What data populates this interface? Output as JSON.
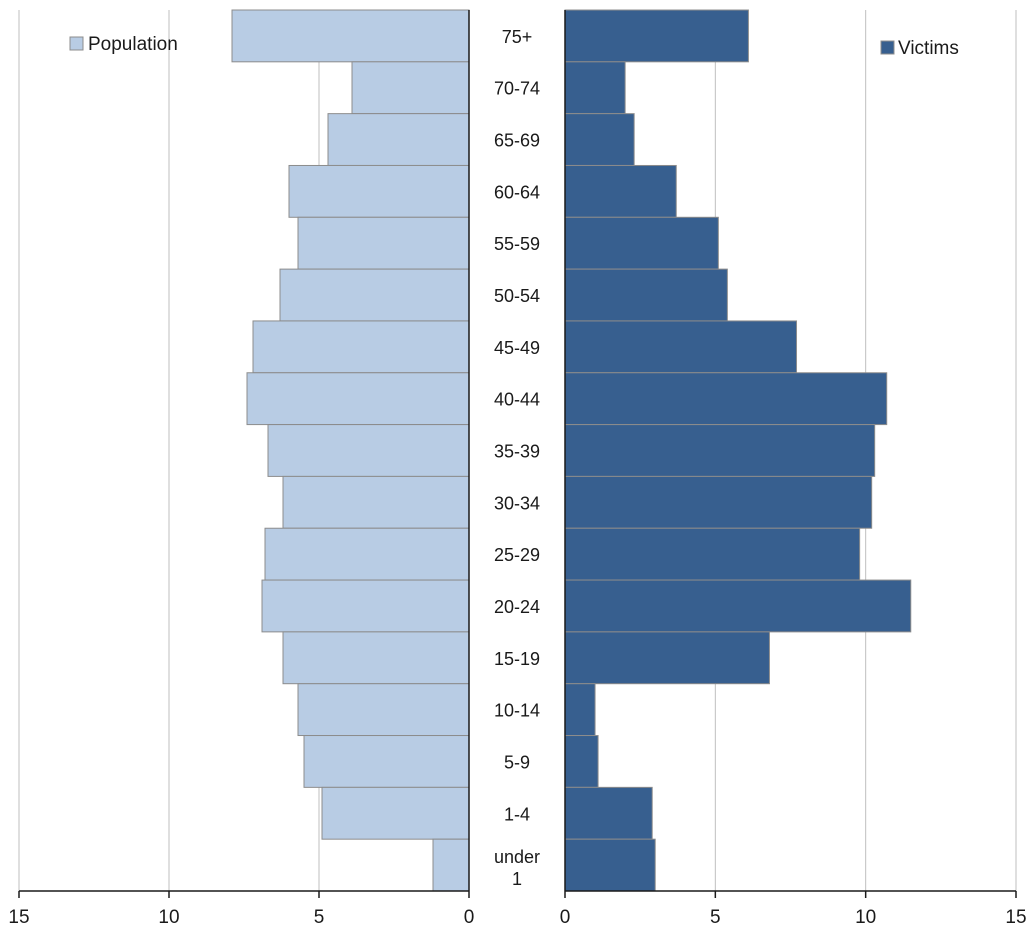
{
  "chart_data": {
    "type": "bar",
    "orientation": "horizontal",
    "layout": "population-pyramid",
    "categories": [
      "75+",
      "70-74",
      "65-69",
      "60-64",
      "55-59",
      "50-54",
      "45-49",
      "40-44",
      "35-39",
      "30-34",
      "25-29",
      "20-24",
      "15-19",
      "10-14",
      "5-9",
      "1-4",
      "under 1"
    ],
    "series": [
      {
        "name": "Population",
        "side": "left",
        "color": "#b8cce4",
        "values": [
          7.9,
          3.9,
          4.7,
          6.0,
          5.7,
          6.3,
          7.2,
          7.4,
          6.7,
          6.2,
          6.8,
          6.9,
          6.2,
          5.7,
          5.5,
          4.9,
          1.2
        ]
      },
      {
        "name": "Victims",
        "side": "right",
        "color": "#375f8f",
        "values": [
          6.1,
          2.0,
          2.3,
          3.7,
          5.1,
          5.4,
          7.7,
          10.7,
          10.3,
          10.2,
          9.8,
          11.5,
          6.8,
          1.0,
          1.1,
          2.9,
          3.0
        ]
      }
    ],
    "left_axis": {
      "min": 0,
      "max": 15,
      "ticks": [
        "0",
        "5",
        "10",
        "15"
      ],
      "reversed": true
    },
    "right_axis": {
      "min": 0,
      "max": 15,
      "ticks": [
        "0",
        "5",
        "10",
        "15"
      ]
    },
    "grid": true,
    "legend": {
      "left": "top-left",
      "right": "top-right"
    },
    "title": "",
    "xlabel": "",
    "ylabel": ""
  }
}
